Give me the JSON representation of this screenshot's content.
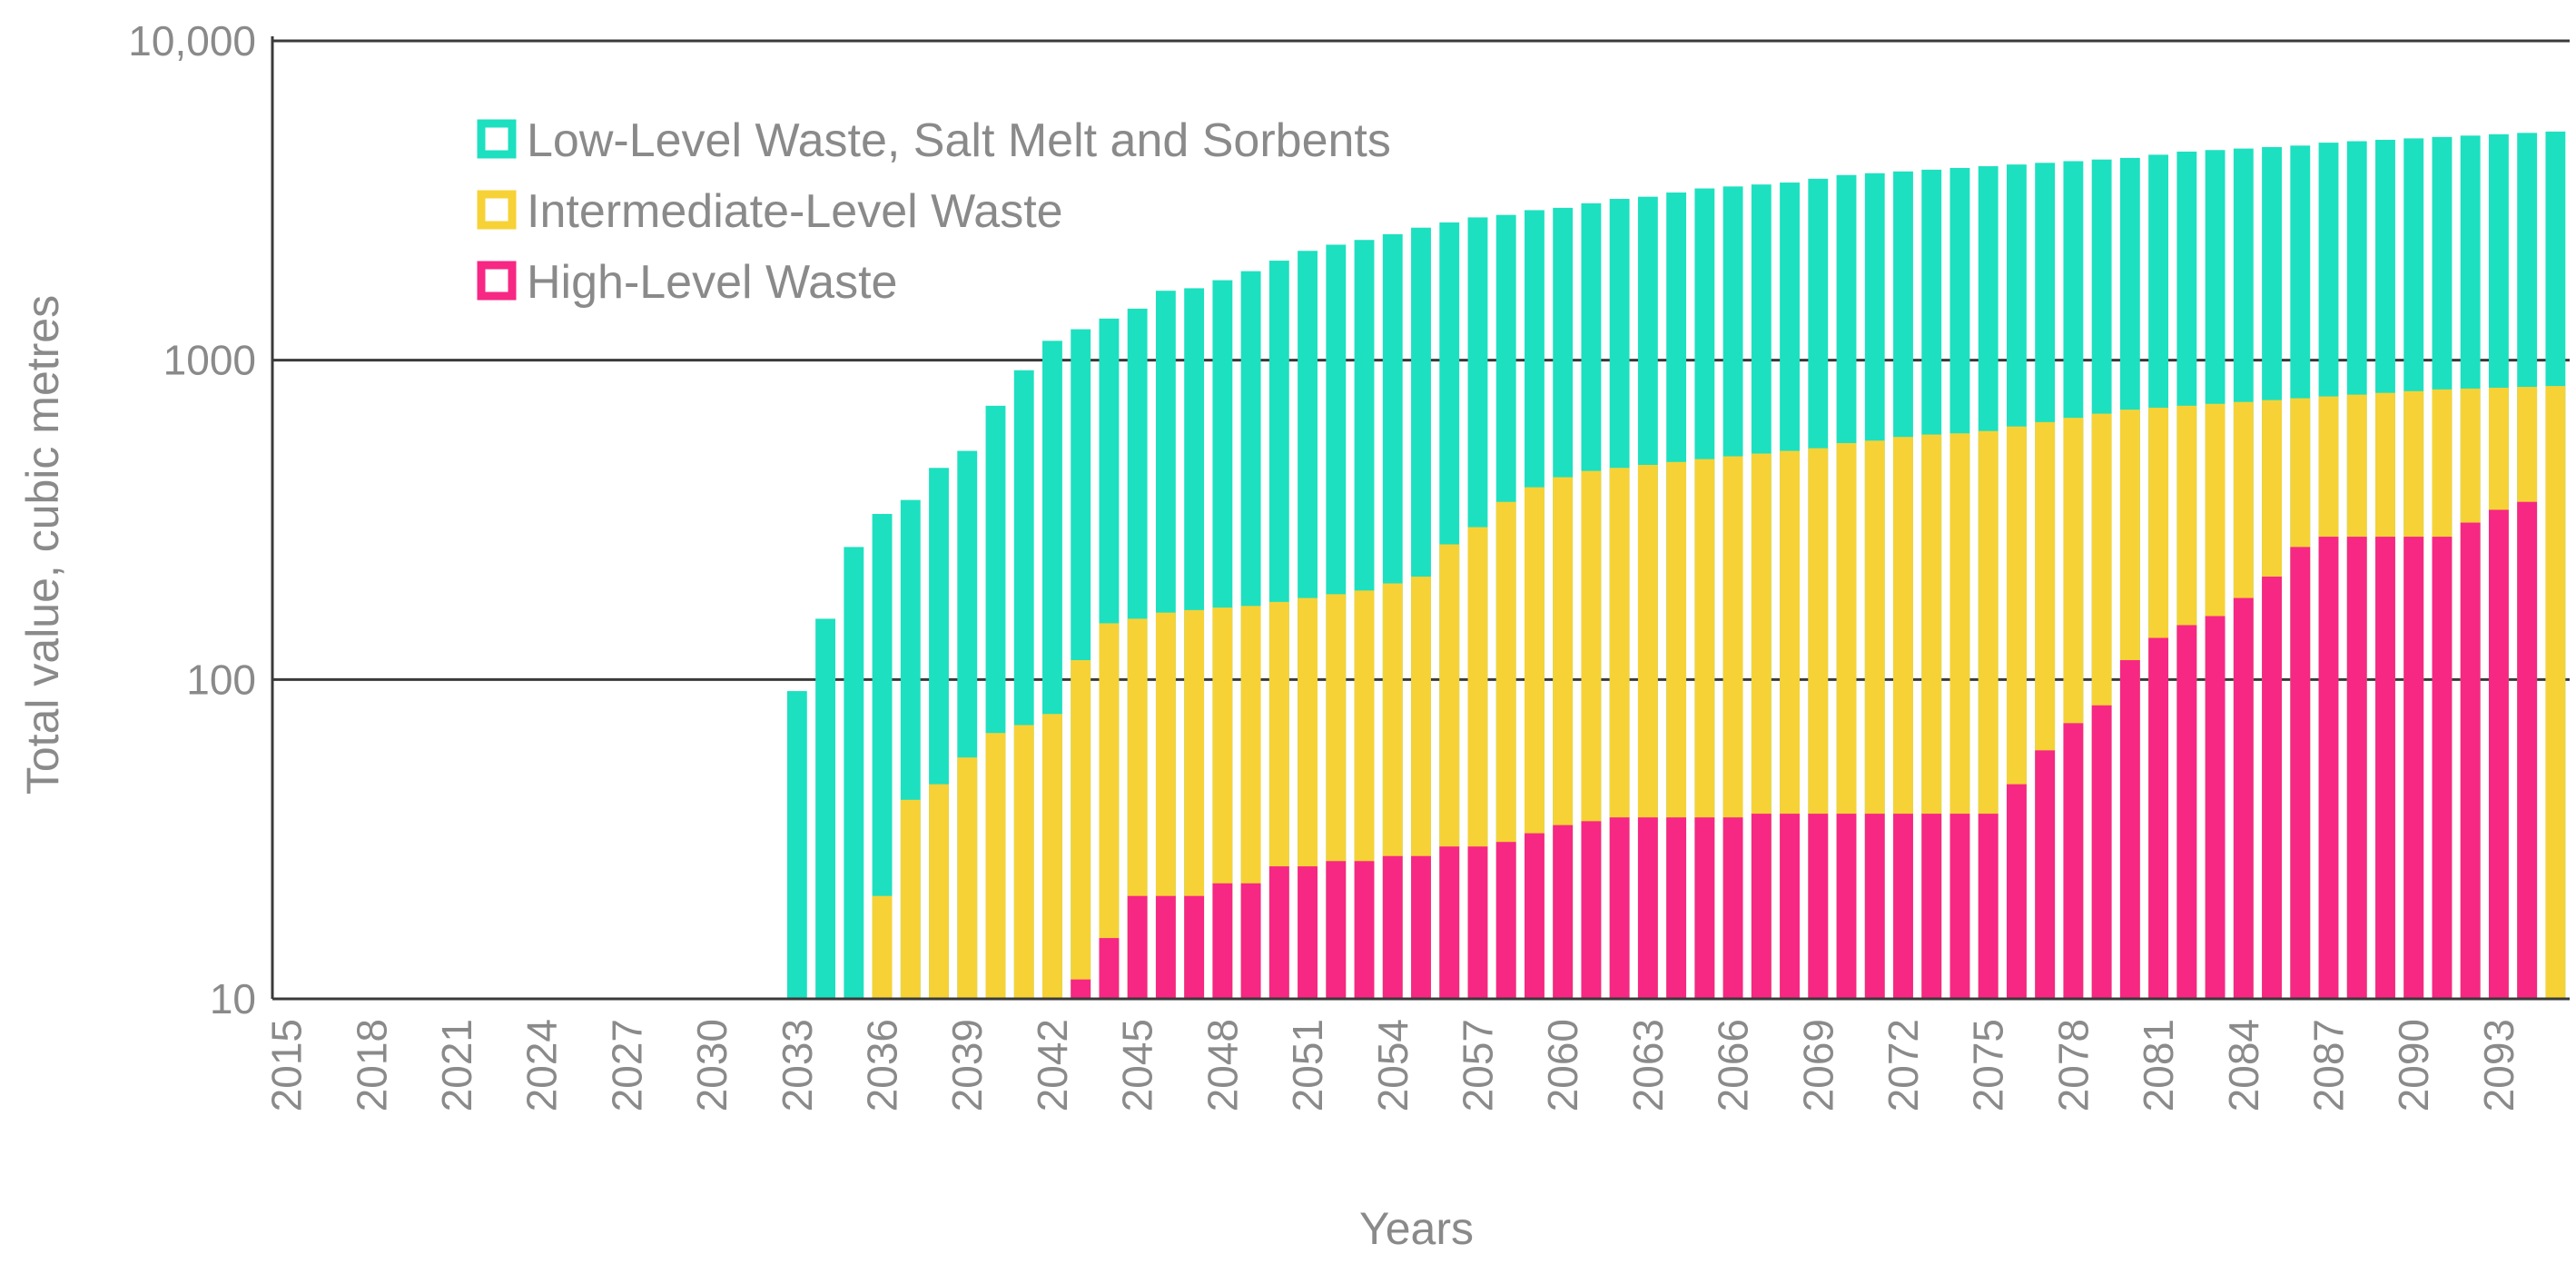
{
  "chart_data": {
    "type": "bar",
    "stacking": "overlapped",
    "yscale": "log",
    "ylim": [
      10,
      10000
    ],
    "yticks": [
      10,
      100,
      1000,
      10000
    ],
    "ytick_labels": [
      "10",
      "100",
      "1000",
      "10,000"
    ],
    "xlabel": "Years",
    "ylabel": "Total value,  cubic metres",
    "x_start": 2015,
    "x_end": 2095,
    "xtick_labels": [
      "2015",
      "2018",
      "2021",
      "2024",
      "2027",
      "2030",
      "2033",
      "2036",
      "2039",
      "2042",
      "2045",
      "2048",
      "2051",
      "2054",
      "2057",
      "2060",
      "2063",
      "2066",
      "2069",
      "2072",
      "2075",
      "2078",
      "2081",
      "2084",
      "2087",
      "2090",
      "2093"
    ],
    "legend_position": "top-left",
    "series": [
      {
        "name": "Low-Level Waste, Salt Melt and Sorbents",
        "color": "#1de0c0",
        "values": [
          null,
          null,
          null,
          null,
          null,
          null,
          null,
          null,
          null,
          null,
          null,
          null,
          null,
          null,
          null,
          null,
          null,
          null,
          92,
          155,
          260,
          330,
          365,
          460,
          520,
          720,
          930,
          1150,
          1250,
          1350,
          1450,
          1650,
          1680,
          1780,
          1900,
          2050,
          2200,
          2300,
          2380,
          2480,
          2600,
          2700,
          2800,
          2850,
          2950,
          3000,
          3100,
          3200,
          3250,
          3350,
          3450,
          3500,
          3550,
          3600,
          3700,
          3800,
          3850,
          3900,
          3950,
          4000,
          4050,
          4100,
          4150,
          4200,
          4250,
          4300,
          4400,
          4500,
          4550,
          4600,
          4650,
          4700,
          4800,
          4850,
          4900,
          4950,
          5000,
          5050,
          5100,
          5150,
          5200
        ]
      },
      {
        "name": "Intermediate-Level Waste",
        "color": "#f7d236",
        "values": [
          null,
          null,
          null,
          null,
          null,
          null,
          null,
          null,
          null,
          null,
          null,
          null,
          null,
          null,
          null,
          null,
          null,
          null,
          null,
          null,
          null,
          21,
          42,
          47,
          57,
          68,
          72,
          78,
          115,
          150,
          155,
          162,
          165,
          168,
          170,
          175,
          180,
          185,
          190,
          200,
          210,
          265,
          300,
          360,
          400,
          430,
          450,
          460,
          470,
          480,
          490,
          500,
          510,
          520,
          530,
          550,
          560,
          575,
          585,
          590,
          600,
          620,
          640,
          660,
          680,
          700,
          710,
          720,
          730,
          740,
          750,
          760,
          770,
          780,
          790,
          800,
          810,
          815,
          820,
          825,
          830
        ]
      },
      {
        "name": "High-Level Waste",
        "color": "#f72784",
        "values": [
          null,
          null,
          null,
          null,
          null,
          null,
          null,
          null,
          null,
          null,
          null,
          null,
          null,
          null,
          null,
          null,
          null,
          null,
          null,
          null,
          null,
          null,
          null,
          null,
          null,
          null,
          null,
          null,
          11.5,
          15.5,
          21,
          21,
          21,
          23,
          23,
          26,
          26,
          27,
          27,
          28,
          28,
          30,
          30,
          31,
          33,
          35,
          36,
          37,
          37,
          37,
          37,
          37,
          38,
          38,
          38,
          38,
          38,
          38,
          38,
          38,
          38,
          47,
          60,
          73,
          83,
          115,
          135,
          148,
          158,
          180,
          210,
          260,
          280,
          280,
          280,
          280,
          280,
          310,
          340,
          360
        ]
      }
    ]
  }
}
